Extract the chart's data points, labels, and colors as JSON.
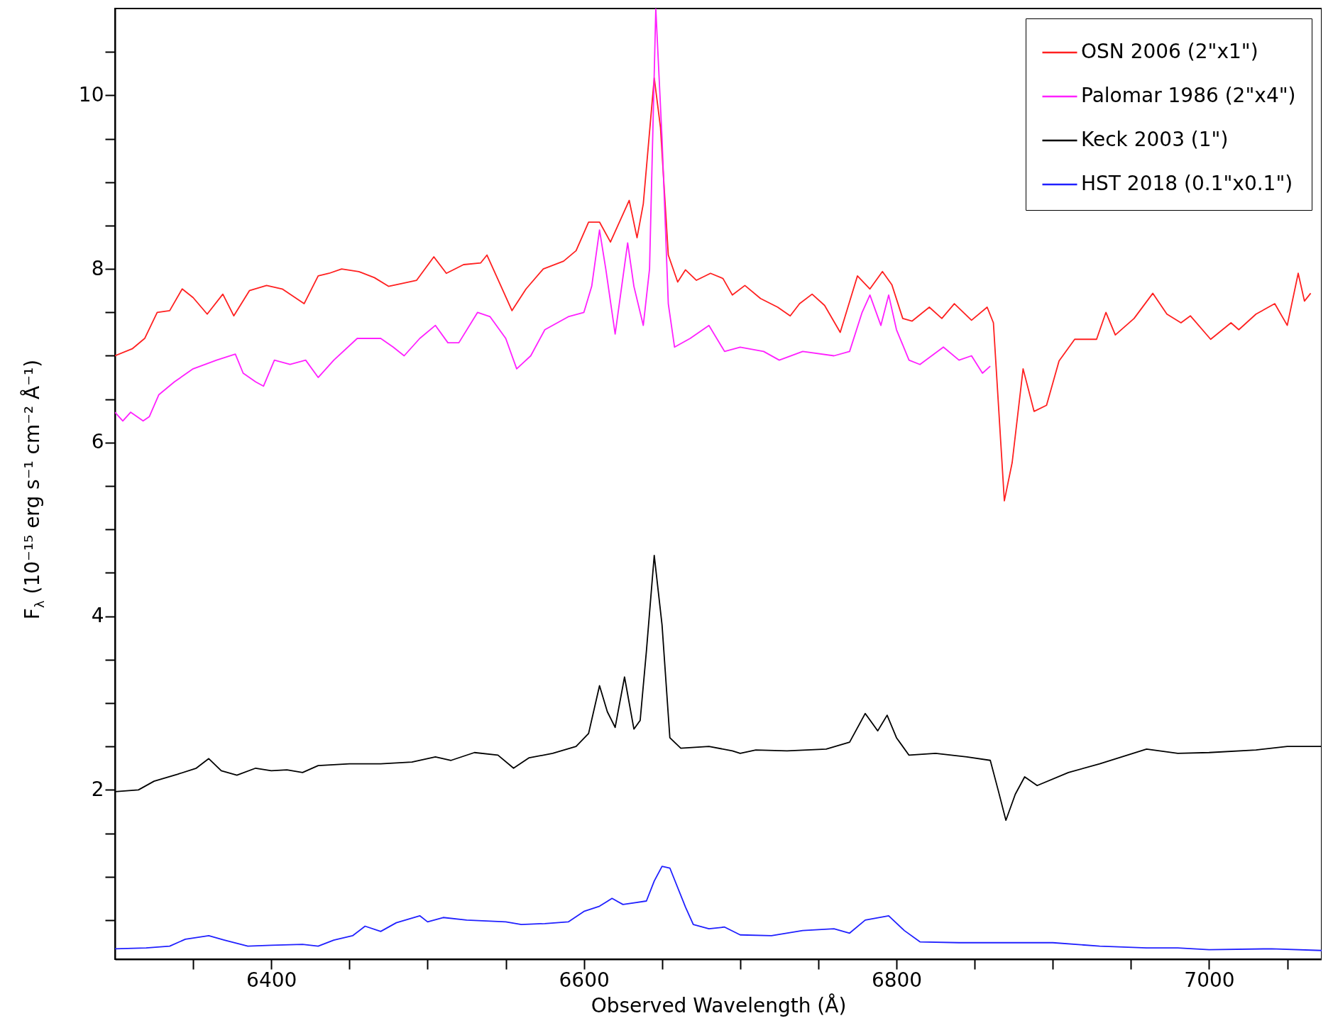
{
  "chart_data": {
    "type": "line",
    "xlabel": "Observed Wavelength (Å)",
    "ylabel": "F$_{λ}$ (10⁻¹⁵ erg s⁻¹ cm⁻² Å⁻¹)",
    "xlim": [
      6300,
      7072
    ],
    "ylim": [
      0.05,
      11
    ],
    "xticks": [
      {
        "value": 6350,
        "label": null
      },
      6400,
      {
        "value": 6450,
        "label": null
      },
      {
        "value": 6500,
        "label": null
      },
      {
        "value": 6550,
        "label": null
      },
      6600,
      {
        "value": 6650,
        "label": null
      },
      {
        "value": 6700,
        "label": null
      },
      {
        "value": 6750,
        "label": null
      },
      6800,
      {
        "value": 6850,
        "label": null
      },
      {
        "value": 6900,
        "label": null
      },
      {
        "value": 6950,
        "label": null
      },
      7000,
      {
        "value": 7050,
        "label": null
      }
    ],
    "yticks": [
      {
        "value": 0.5,
        "label": null
      },
      {
        "value": 1,
        "label": null
      },
      {
        "value": 1.5,
        "label": null
      },
      2,
      {
        "value": 2.5,
        "label": null
      },
      {
        "value": 3,
        "label": null
      },
      {
        "value": 3.5,
        "label": null
      },
      4,
      {
        "value": 4.5,
        "label": null
      },
      {
        "value": 5,
        "label": null
      },
      {
        "value": 5.5,
        "label": null
      },
      6,
      {
        "value": 6.5,
        "label": null
      },
      {
        "value": 7,
        "label": null
      },
      {
        "value": 7.5,
        "label": null
      },
      8,
      {
        "value": 8.5,
        "label": null
      },
      {
        "value": 9,
        "label": null
      },
      {
        "value": 9.5,
        "label": null
      },
      10,
      {
        "value": 10.5,
        "label": null
      }
    ],
    "legend": "top right",
    "grid": false,
    "series": [
      {
        "name": "OSN 2006 (2\"x1\")",
        "color": "#ff2020",
        "x": [
          6300,
          6311,
          6319,
          6327,
          6335,
          6343,
          6350,
          6359,
          6369,
          6376,
          6386,
          6397,
          6407,
          6421,
          6430,
          6437,
          6445,
          6456,
          6466,
          6475,
          6483,
          6493,
          6504,
          6512,
          6523,
          6534,
          6538,
          6544,
          6554,
          6563,
          6574,
          6587,
          6595,
          6603,
          6610,
          6617,
          6629,
          6634,
          6638,
          6645,
          6649,
          6654,
          6660,
          6665,
          6672,
          6681,
          6689,
          6695,
          6703,
          6713,
          6724,
          6732,
          6738,
          6746,
          6754,
          6764,
          6775,
          6783,
          6791,
          6797,
          6804,
          6810,
          6821,
          6829,
          6837,
          6848,
          6858,
          6862,
          6869,
          6874,
          6881,
          6888,
          6896,
          6904,
          6914,
          6928,
          6934,
          6940,
          6952,
          6964,
          6973,
          6982,
          6988,
          7001,
          7014,
          7019,
          7030,
          7042,
          7050,
          7057,
          7061,
          7065
        ],
        "values": [
          7.0,
          7.08,
          7.2,
          7.5,
          7.52,
          7.77,
          7.67,
          7.48,
          7.71,
          7.46,
          7.75,
          7.81,
          7.77,
          7.6,
          7.92,
          7.95,
          8.0,
          7.97,
          7.9,
          7.8,
          7.83,
          7.87,
          8.14,
          7.95,
          8.05,
          8.07,
          8.16,
          7.92,
          7.52,
          7.77,
          8.0,
          8.09,
          8.21,
          8.54,
          8.54,
          8.31,
          8.79,
          8.36,
          8.75,
          10.2,
          9.63,
          8.16,
          7.85,
          7.99,
          7.87,
          7.95,
          7.89,
          7.7,
          7.81,
          7.66,
          7.56,
          7.46,
          7.6,
          7.71,
          7.58,
          7.27,
          7.92,
          7.77,
          7.97,
          7.82,
          7.43,
          7.4,
          7.56,
          7.43,
          7.6,
          7.41,
          7.56,
          7.38,
          5.33,
          5.77,
          6.85,
          6.36,
          6.43,
          6.94,
          7.19,
          7.19,
          7.5,
          7.24,
          7.43,
          7.72,
          7.48,
          7.38,
          7.46,
          7.19,
          7.38,
          7.3,
          7.48,
          7.6,
          7.35,
          7.95,
          7.63,
          7.72
        ]
      },
      {
        "name": "Palomar 1986 (2\"x4\")",
        "color": "#ff20ff",
        "x": [
          6300,
          6305,
          6310,
          6318,
          6322,
          6328,
          6338,
          6350,
          6365,
          6377,
          6382,
          6390,
          6395,
          6402,
          6412,
          6422,
          6430,
          6440,
          6455,
          6470,
          6478,
          6485,
          6495,
          6505,
          6513,
          6520,
          6532,
          6540,
          6550,
          6557,
          6566,
          6575,
          6590,
          6600,
          6605,
          6610,
          6614,
          6620,
          6628,
          6632,
          6638,
          6642,
          6646,
          6650,
          6654,
          6658,
          6668,
          6680,
          6690,
          6700,
          6715,
          6725,
          6740,
          6760,
          6770,
          6778,
          6783,
          6790,
          6795,
          6800,
          6808,
          6815,
          6830,
          6840,
          6848,
          6855,
          6860
        ],
        "values": [
          6.35,
          6.25,
          6.35,
          6.25,
          6.3,
          6.55,
          6.7,
          6.85,
          6.95,
          7.02,
          6.8,
          6.7,
          6.65,
          6.95,
          6.9,
          6.95,
          6.75,
          6.95,
          7.2,
          7.2,
          7.1,
          7.0,
          7.2,
          7.35,
          7.15,
          7.15,
          7.5,
          7.45,
          7.2,
          6.85,
          7.0,
          7.3,
          7.45,
          7.5,
          7.8,
          8.45,
          8.0,
          7.25,
          8.3,
          7.8,
          7.35,
          8.0,
          11.0,
          9.5,
          7.6,
          7.1,
          7.2,
          7.35,
          7.05,
          7.1,
          7.05,
          6.95,
          7.05,
          7.0,
          7.05,
          7.5,
          7.7,
          7.35,
          7.7,
          7.3,
          6.95,
          6.9,
          7.1,
          6.95,
          7.0,
          6.8,
          6.88
        ]
      },
      {
        "name": "Keck 2003 (1\")",
        "color": "#000000",
        "x": [
          6300,
          6315,
          6325,
          6340,
          6352,
          6360,
          6368,
          6378,
          6390,
          6400,
          6410,
          6420,
          6430,
          6450,
          6470,
          6490,
          6505,
          6515,
          6530,
          6545,
          6555,
          6565,
          6580,
          6595,
          6603,
          6610,
          6615,
          6620,
          6626,
          6632,
          6636,
          6640,
          6645,
          6650,
          6655,
          6662,
          6680,
          6695,
          6700,
          6710,
          6730,
          6755,
          6770,
          6780,
          6788,
          6794,
          6800,
          6808,
          6825,
          6845,
          6860,
          6865,
          6870,
          6876,
          6882,
          6890,
          6910,
          6930,
          6960,
          6980,
          7000,
          7030,
          7050,
          7072
        ],
        "values": [
          1.98,
          2.0,
          2.1,
          2.18,
          2.25,
          2.36,
          2.22,
          2.17,
          2.25,
          2.22,
          2.23,
          2.2,
          2.28,
          2.3,
          2.3,
          2.32,
          2.38,
          2.34,
          2.43,
          2.4,
          2.25,
          2.37,
          2.42,
          2.5,
          2.65,
          3.2,
          2.9,
          2.72,
          3.3,
          2.7,
          2.8,
          3.6,
          4.7,
          3.9,
          2.6,
          2.48,
          2.5,
          2.45,
          2.42,
          2.46,
          2.45,
          2.47,
          2.55,
          2.88,
          2.68,
          2.86,
          2.6,
          2.4,
          2.42,
          2.38,
          2.34,
          2.0,
          1.65,
          1.95,
          2.15,
          2.05,
          2.2,
          2.3,
          2.47,
          2.42,
          2.43,
          2.46,
          2.5,
          2.5
        ]
      },
      {
        "name": "HST 2018 (0.1\"x0.1\")",
        "color": "#2020ff",
        "x": [
          6300,
          6320,
          6335,
          6345,
          6360,
          6370,
          6385,
          6400,
          6420,
          6430,
          6440,
          6452,
          6460,
          6470,
          6480,
          6495,
          6500,
          6510,
          6525,
          6550,
          6560,
          6575,
          6590,
          6600,
          6610,
          6618,
          6625,
          6640,
          6645,
          6650,
          6655,
          6665,
          6670,
          6680,
          6690,
          6700,
          6720,
          6740,
          6760,
          6770,
          6780,
          6795,
          6805,
          6815,
          6840,
          6870,
          6900,
          6930,
          6960,
          6980,
          7000,
          7040,
          7072
        ],
        "values": [
          0.17,
          0.18,
          0.2,
          0.28,
          0.32,
          0.27,
          0.2,
          0.21,
          0.22,
          0.2,
          0.27,
          0.32,
          0.43,
          0.37,
          0.47,
          0.55,
          0.48,
          0.53,
          0.5,
          0.48,
          0.45,
          0.46,
          0.48,
          0.6,
          0.66,
          0.75,
          0.68,
          0.72,
          0.95,
          1.12,
          1.1,
          0.65,
          0.45,
          0.4,
          0.42,
          0.33,
          0.32,
          0.38,
          0.4,
          0.35,
          0.5,
          0.55,
          0.38,
          0.25,
          0.24,
          0.24,
          0.24,
          0.2,
          0.18,
          0.18,
          0.16,
          0.17,
          0.15
        ]
      }
    ]
  }
}
